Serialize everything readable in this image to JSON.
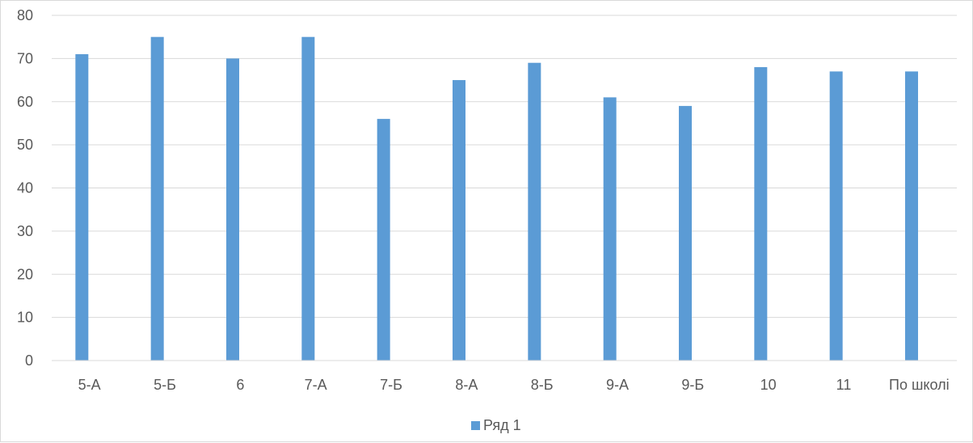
{
  "chart_data": {
    "type": "bar",
    "title": "",
    "xlabel": "",
    "ylabel": "",
    "categories": [
      "5-А",
      "5-Б",
      "6",
      "7-А",
      "7-Б",
      "8-А",
      "8-Б",
      "9-А",
      "9-Б",
      "10",
      "11",
      "По школі"
    ],
    "series": [
      {
        "name": "Ряд 1",
        "color": "#5b9bd5",
        "values": [
          71,
          75,
          70,
          75,
          56,
          65,
          69,
          61,
          59,
          68,
          67,
          67
        ]
      }
    ],
    "ylim": [
      0,
      80
    ],
    "yticks": [
      "0",
      "10",
      "20",
      "30",
      "40",
      "50",
      "60",
      "70",
      "80"
    ],
    "grid": true,
    "legend_position": "bottom"
  }
}
